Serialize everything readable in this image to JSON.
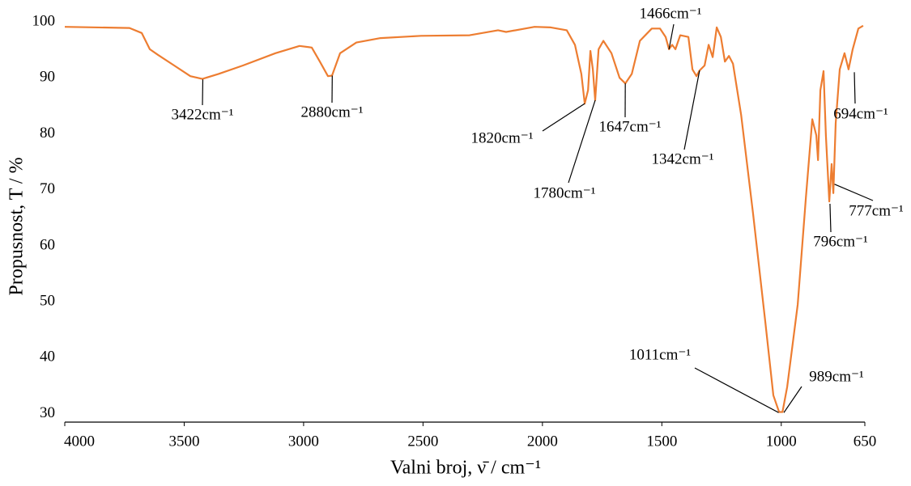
{
  "chart_data": {
    "type": "line",
    "x_label": "Valni broj, ν̄ / cm⁻¹",
    "y_label": "Propusnost, T / %",
    "color": "#ED7D31",
    "x": [
      4000,
      3729,
      3678,
      3644,
      3610,
      3542,
      3474,
      3424,
      3356,
      3254,
      3118,
      3017,
      2966,
      2932,
      2898,
      2881,
      2847,
      2779,
      2678,
      2508,
      2305,
      2186,
      2152,
      2033,
      1965,
      1898,
      1864,
      1837,
      1823,
      1809,
      1799,
      1789,
      1779,
      1765,
      1745,
      1711,
      1677,
      1653,
      1626,
      1592,
      1542,
      1508,
      1484,
      1470,
      1457,
      1443,
      1423,
      1389,
      1372,
      1355,
      1342,
      1321,
      1304,
      1287,
      1270,
      1253,
      1236,
      1219,
      1202,
      1168,
      1118,
      1067,
      1033,
      1009,
      995,
      975,
      931,
      897,
      870,
      853,
      846,
      836,
      823,
      813,
      799,
      789,
      782,
      772,
      755,
      735,
      718,
      701,
      677,
      657
    ],
    "values": [
      99.1,
      98.9,
      98.0,
      95.1,
      94.1,
      92.2,
      90.3,
      89.8,
      90.7,
      92.2,
      94.4,
      95.7,
      95.4,
      92.9,
      90.3,
      90.4,
      94.4,
      96.3,
      97.1,
      97.5,
      97.6,
      98.5,
      98.2,
      99.1,
      99.0,
      98.5,
      95.9,
      90.7,
      85.4,
      87.8,
      94.8,
      91.5,
      86.0,
      95.1,
      96.6,
      94.4,
      90.0,
      89.0,
      90.7,
      96.6,
      98.8,
      98.8,
      97.3,
      95.1,
      95.9,
      95.1,
      97.6,
      97.3,
      91.5,
      90.3,
      91.3,
      92.2,
      95.9,
      93.7,
      99.0,
      97.3,
      92.9,
      93.9,
      92.5,
      83.4,
      65.7,
      46.5,
      33.3,
      30.3,
      30.3,
      34.8,
      49.5,
      68.6,
      82.6,
      79.7,
      75.3,
      87.8,
      91.2,
      79.7,
      67.9,
      74.6,
      69.4,
      81.9,
      91.5,
      94.4,
      91.5,
      95.1,
      98.8,
      99.3
    ],
    "xlim": [
      4000,
      650
    ],
    "ylim": [
      28.5,
      100
    ],
    "xticks": [
      4000,
      3500,
      3000,
      2500,
      2000,
      1500,
      1000,
      650
    ],
    "yticks": [
      30,
      40,
      50,
      60,
      70,
      80,
      90,
      100
    ],
    "annotations": [
      {
        "text": "3422cm⁻¹",
        "x": 3422,
        "y": 89.7
      },
      {
        "text": "2880cm⁻¹",
        "x": 2880,
        "y": 90.4
      },
      {
        "text": "1820cm⁻¹",
        "x": 1823,
        "y": 85.4
      },
      {
        "text": "1780cm⁻¹",
        "x": 1779,
        "y": 86.0
      },
      {
        "text": "1647cm⁻¹",
        "x": 1653,
        "y": 89.0
      },
      {
        "text": "1466cm⁻¹",
        "x": 1470,
        "y": 95.1
      },
      {
        "text": "1342cm⁻¹",
        "x": 1342,
        "y": 91.3
      },
      {
        "text": "1011cm⁻¹",
        "x": 1011,
        "y": 30.2
      },
      {
        "text": "989cm⁻¹",
        "x": 989,
        "y": 30.2
      },
      {
        "text": "796cm⁻¹",
        "x": 796,
        "y": 67.5
      },
      {
        "text": "777cm⁻¹",
        "x": 777,
        "y": 71
      },
      {
        "text": "694cm⁻¹",
        "x": 694,
        "y": 91
      }
    ]
  }
}
